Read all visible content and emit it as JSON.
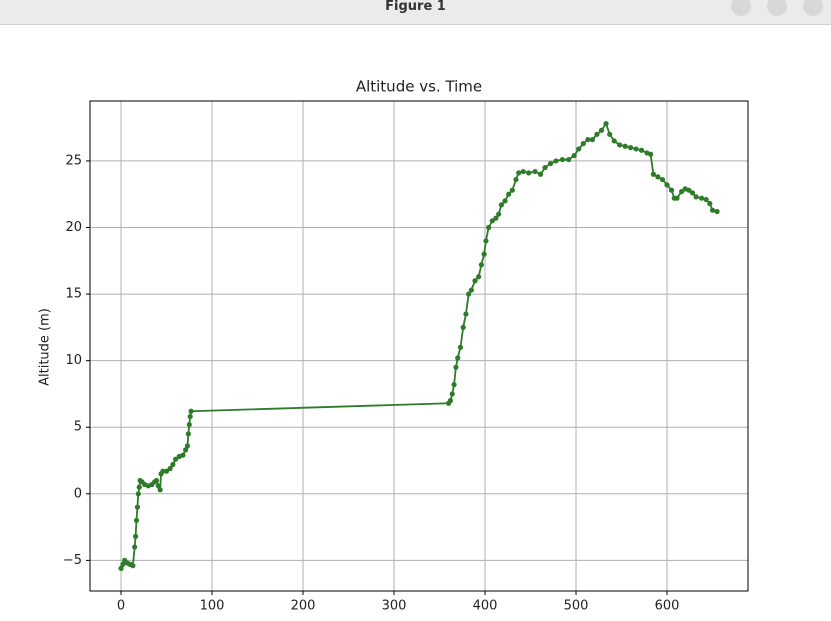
{
  "window": {
    "title": "Figure 1"
  },
  "chart_data": {
    "type": "line",
    "title": "Altitude vs. Time",
    "ylabel": "Altitude (m)",
    "x": [
      0,
      2,
      4,
      7,
      10,
      13,
      15,
      16,
      17,
      18,
      19,
      20,
      21,
      23,
      26,
      30,
      34,
      37,
      39,
      41,
      43,
      44,
      46,
      50,
      54,
      57,
      60,
      64,
      68,
      71,
      73,
      74,
      75,
      76,
      77,
      360,
      362,
      364,
      366,
      368,
      370,
      373,
      376,
      379,
      382,
      385,
      389,
      393,
      396,
      399,
      401,
      404,
      408,
      412,
      415,
      418,
      422,
      426,
      430,
      434,
      437,
      442,
      448,
      455,
      461,
      466,
      472,
      478,
      485,
      492,
      498,
      503,
      508,
      513,
      518,
      523,
      528,
      533,
      537,
      542,
      548,
      554,
      560,
      566,
      572,
      578,
      582,
      585,
      590,
      595,
      600,
      605,
      608,
      611,
      616,
      620,
      624,
      628,
      632,
      638,
      643,
      647,
      650,
      655
    ],
    "values": [
      -5.6,
      -5.3,
      -5.0,
      -5.2,
      -5.3,
      -5.4,
      -4.0,
      -3.2,
      -2.0,
      -1.0,
      0,
      0.5,
      1.0,
      0.9,
      0.7,
      0.6,
      0.7,
      0.9,
      1.0,
      0.6,
      0.3,
      1.5,
      1.7,
      1.7,
      1.9,
      2.2,
      2.6,
      2.8,
      2.9,
      3.3,
      3.6,
      4.5,
      5.2,
      5.8,
      6.2,
      6.8,
      7.0,
      7.5,
      8.2,
      9.5,
      10.2,
      11.0,
      12.5,
      13.5,
      15.0,
      15.3,
      16.0,
      16.3,
      17.2,
      18.0,
      19.0,
      20.0,
      20.5,
      20.7,
      21.0,
      21.7,
      22.0,
      22.5,
      22.8,
      23.6,
      24.1,
      24.2,
      24.1,
      24.2,
      24.0,
      24.5,
      24.8,
      25.0,
      25.1,
      25.1,
      25.4,
      25.9,
      26.3,
      26.6,
      26.6,
      27.0,
      27.3,
      27.8,
      27.0,
      26.5,
      26.2,
      26.1,
      26.0,
      25.9,
      25.8,
      25.6,
      25.5,
      24.0,
      23.8,
      23.6,
      23.2,
      22.8,
      22.2,
      22.2,
      22.7,
      22.9,
      22.8,
      22.6,
      22.3,
      22.2,
      22.1,
      21.8,
      21.3,
      21.2
    ],
    "color": "#2e7b2a",
    "xlim": [
      -34.1,
      689
    ],
    "ylim": [
      -7.3,
      29.5
    ],
    "xticks": [
      0,
      100,
      200,
      300,
      400,
      500,
      600
    ],
    "yticks": [
      {
        "value": -5,
        "label": "−5"
      },
      0,
      5,
      10,
      15,
      20,
      25
    ],
    "grid": true
  }
}
